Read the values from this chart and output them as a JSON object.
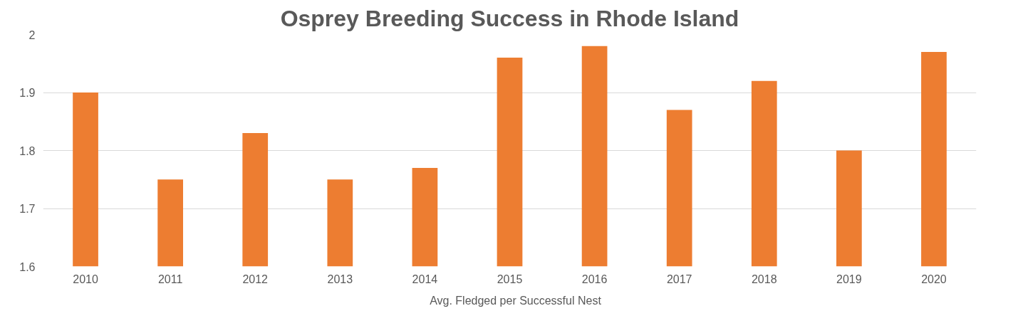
{
  "chart_data": {
    "type": "bar",
    "title": "Osprey Breeding Success in Rhode Island",
    "categories": [
      "2010",
      "2011",
      "2012",
      "2013",
      "2014",
      "2015",
      "2016",
      "2017",
      "2018",
      "2019",
      "2020"
    ],
    "series": [
      {
        "name": "Avg. Fledged per Successful Nest",
        "color": "#ed7d31",
        "values": [
          1.9,
          1.75,
          1.83,
          1.75,
          1.77,
          1.96,
          1.98,
          1.87,
          1.92,
          1.8,
          1.97
        ]
      }
    ],
    "ylim": [
      1.6,
      2
    ],
    "yticks": [
      1.6,
      1.7,
      1.8,
      1.9,
      2
    ],
    "grid": "y",
    "legend": "bottom"
  }
}
